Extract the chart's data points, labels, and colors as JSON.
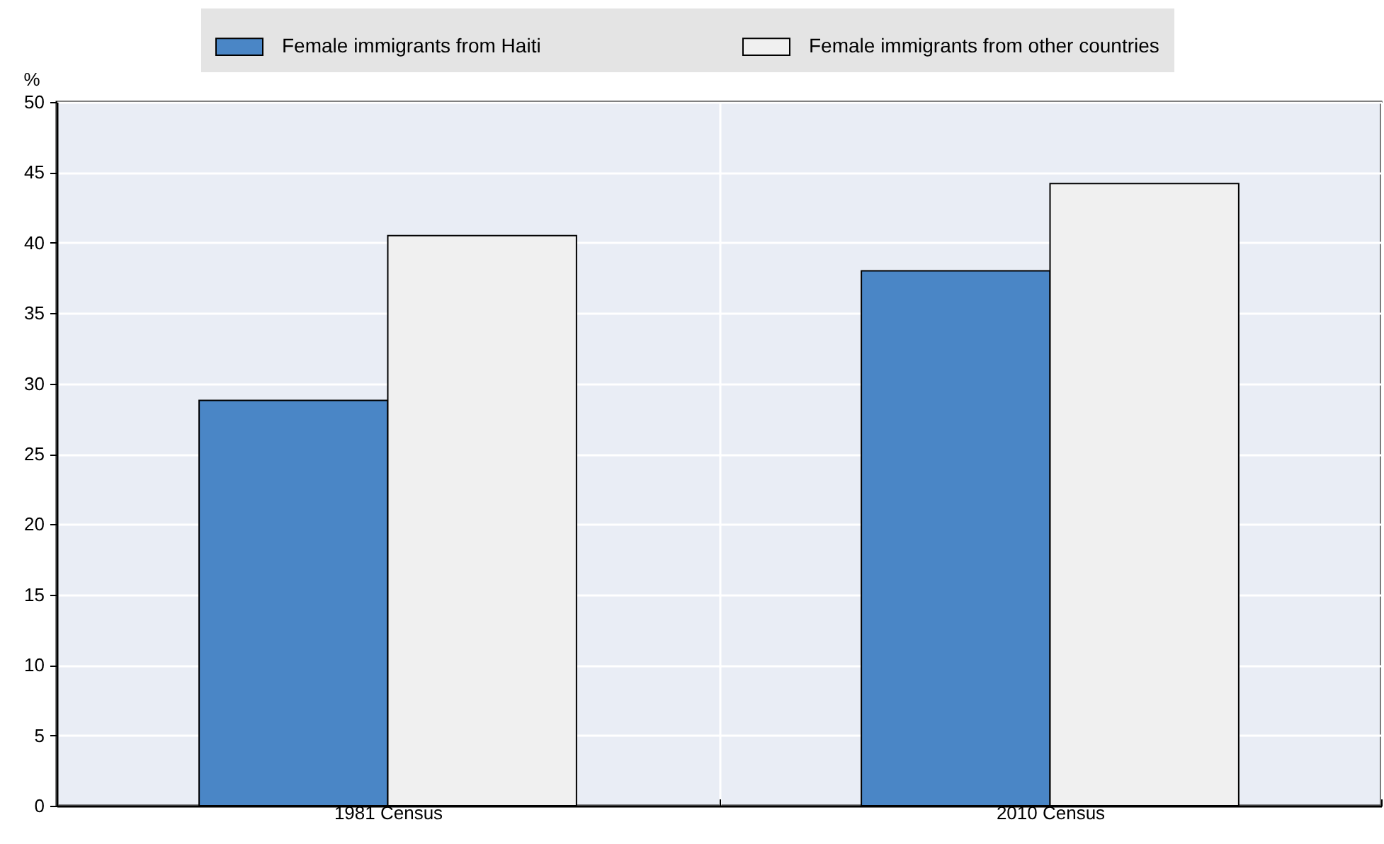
{
  "chart_data": {
    "type": "bar",
    "ylabel": "%",
    "categories": [
      "1981 Census",
      "2010 Census"
    ],
    "series": [
      {
        "name": "Female immigrants from Haiti",
        "color": "#4a86c6",
        "values": [
          28.8,
          38.0
        ]
      },
      {
        "name": "Female immigrants from other countries",
        "color": "#f0f0f0",
        "values": [
          40.5,
          44.2
        ]
      }
    ],
    "ylim": [
      0,
      50
    ],
    "yticks": [
      0,
      5,
      10,
      15,
      20,
      25,
      30,
      35,
      40,
      45,
      50
    ],
    "grid": true,
    "legend": "top"
  }
}
